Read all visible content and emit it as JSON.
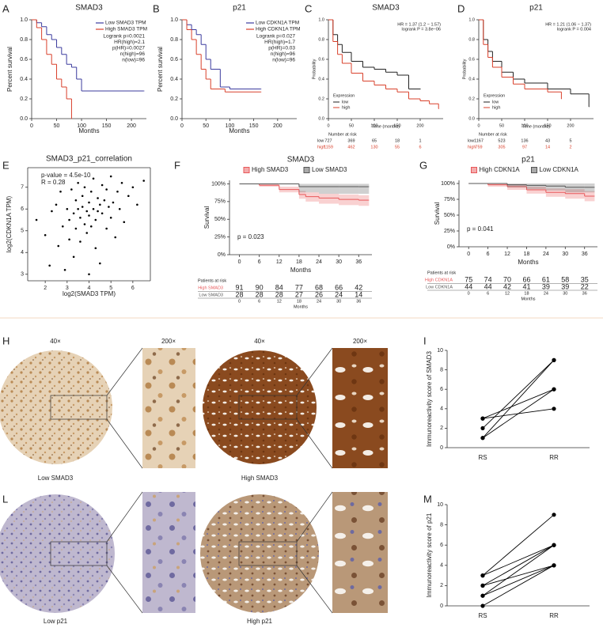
{
  "chart_data": [
    {
      "panel": "A",
      "type": "km",
      "title": "SMAD3",
      "xlabel": "Months",
      "ylabel": "Percent survival",
      "xlim": [
        0,
        230
      ],
      "xticks": [
        0,
        50,
        100,
        150,
        200
      ],
      "ylim": [
        0,
        1
      ],
      "yticks": [
        {
          "value": 0,
          "label": "0.0"
        },
        {
          "value": 0.2,
          "label": "0.2"
        },
        {
          "value": 0.4,
          "label": "0.4"
        },
        {
          "value": 0.6,
          "label": "0.6"
        },
        {
          "value": 0.8,
          "label": "0.8"
        },
        {
          "value": 1,
          "label": "1.0"
        }
      ],
      "legend": "upper right",
      "annotations": [
        "Logrank p=0.0021",
        "HR(high)=2.1",
        "p(HR)=0.0027",
        "n(high)=96",
        "n(low)=96"
      ],
      "series": [
        {
          "name": "Low SMAD3 TPM",
          "color": "#3b3b9e",
          "x": [
            0,
            10,
            20,
            30,
            40,
            50,
            60,
            70,
            80,
            90,
            100,
            225
          ],
          "values": [
            1,
            0.97,
            0.93,
            0.85,
            0.8,
            0.72,
            0.65,
            0.55,
            0.52,
            0.4,
            0.28,
            0.28
          ]
        },
        {
          "name": "High SMAD3 TPM",
          "color": "#d9402b",
          "x": [
            0,
            10,
            20,
            30,
            40,
            50,
            60,
            70,
            80
          ],
          "values": [
            1,
            0.92,
            0.8,
            0.65,
            0.55,
            0.4,
            0.32,
            0.2,
            0
          ]
        }
      ]
    },
    {
      "panel": "B",
      "type": "km",
      "title": "p21",
      "xlabel": "Months",
      "ylabel": "Percent survival",
      "xlim": [
        0,
        240
      ],
      "xticks": [
        0,
        50,
        100,
        150,
        200
      ],
      "ylim": [
        0,
        1
      ],
      "yticks": [
        {
          "value": 0,
          "label": "0.0"
        },
        {
          "value": 0.2,
          "label": "0.2"
        },
        {
          "value": 0.4,
          "label": "0.4"
        },
        {
          "value": 0.6,
          "label": "0.6"
        },
        {
          "value": 0.8,
          "label": "0.8"
        },
        {
          "value": 1,
          "label": "1.0"
        }
      ],
      "legend": "upper right",
      "annotations": [
        "Logrank p=0.027",
        "HR(high)=1.7",
        "p(HR)=0.03",
        "n(high)=96",
        "n(low)=96"
      ],
      "series": [
        {
          "name": "Low CDKN1A TPM",
          "color": "#3b3b9e",
          "x": [
            0,
            10,
            20,
            30,
            40,
            50,
            60,
            80,
            100,
            165
          ],
          "values": [
            1,
            0.95,
            0.9,
            0.85,
            0.75,
            0.6,
            0.5,
            0.32,
            0.3,
            0.3
          ]
        },
        {
          "name": "High CDKN1A TPM",
          "color": "#d9402b",
          "x": [
            0,
            10,
            20,
            30,
            40,
            50,
            60,
            90,
            165
          ],
          "values": [
            1,
            0.9,
            0.8,
            0.65,
            0.5,
            0.4,
            0.3,
            0.27,
            0.27
          ]
        }
      ]
    },
    {
      "panel": "C",
      "type": "km",
      "title": "SMAD3",
      "xlabel": "Time (months)",
      "ylabel": "Probability",
      "xlim": [
        0,
        250
      ],
      "xticks": [
        0,
        50,
        100,
        150,
        200
      ],
      "ylim": [
        0,
        1
      ],
      "yticks": [
        {
          "value": 0,
          "label": "0.0"
        },
        {
          "value": 0.2,
          "label": "0.2"
        },
        {
          "value": 0.4,
          "label": "0.4"
        },
        {
          "value": 0.6,
          "label": "0.6"
        },
        {
          "value": 0.8,
          "label": "0.8"
        },
        {
          "value": 1,
          "label": "1.0"
        }
      ],
      "legend": "lower left",
      "legend_title": "Expression",
      "annotations": [
        "HR = 1.37 (1.2 − 1.57)",
        "logrank P = 3.8e−06"
      ],
      "series": [
        {
          "name": "low",
          "color": "#222222",
          "x": [
            0,
            10,
            20,
            30,
            50,
            75,
            100,
            125,
            150,
            175,
            200
          ],
          "values": [
            1,
            0.85,
            0.75,
            0.67,
            0.58,
            0.52,
            0.5,
            0.47,
            0.44,
            0.3,
            0.3
          ]
        },
        {
          "name": "high",
          "color": "#d9402b",
          "x": [
            0,
            10,
            20,
            30,
            50,
            75,
            100,
            125,
            150,
            175,
            200,
            220,
            240
          ],
          "values": [
            1,
            0.78,
            0.65,
            0.56,
            0.46,
            0.38,
            0.34,
            0.3,
            0.27,
            0.2,
            0.18,
            0.15,
            0.1
          ]
        }
      ],
      "risk": {
        "title": "Number at risk",
        "rows": [
          {
            "name": "low",
            "values": [
              727,
              369,
              65,
              18,
              1
            ]
          },
          {
            "name": "high",
            "values": [
              1159,
              462,
              130,
              55,
              6
            ]
          }
        ]
      }
    },
    {
      "panel": "D",
      "type": "km",
      "title": "p21",
      "xlabel": "Time (months)",
      "ylabel": "Probability",
      "xlim": [
        0,
        250
      ],
      "xticks": [
        0,
        50,
        100,
        150,
        200
      ],
      "ylim": [
        0,
        1
      ],
      "yticks": [
        {
          "value": 0,
          "label": "0.0"
        },
        {
          "value": 0.2,
          "label": "0.2"
        },
        {
          "value": 0.4,
          "label": "0.4"
        },
        {
          "value": 0.6,
          "label": "0.6"
        },
        {
          "value": 0.8,
          "label": "0.8"
        },
        {
          "value": 1,
          "label": "1.0"
        }
      ],
      "legend": "lower left",
      "legend_title": "Expression",
      "annotations": [
        "HR = 1.21 (1.06 − 1.37)",
        "logrank P = 0.004"
      ],
      "series": [
        {
          "name": "low",
          "color": "#222222",
          "x": [
            0,
            10,
            20,
            30,
            50,
            75,
            100,
            150,
            200,
            240
          ],
          "values": [
            1,
            0.8,
            0.68,
            0.58,
            0.47,
            0.4,
            0.36,
            0.3,
            0.25,
            0.12
          ]
        },
        {
          "name": "high",
          "color": "#d9402b",
          "x": [
            0,
            10,
            20,
            30,
            50,
            75,
            100,
            150,
            180
          ],
          "values": [
            1,
            0.75,
            0.62,
            0.52,
            0.42,
            0.35,
            0.3,
            0.27,
            0.2
          ]
        }
      ],
      "risk": {
        "title": "Number at risk",
        "rows": [
          {
            "name": "low",
            "values": [
              1167,
              523,
              136,
              43,
              5
            ]
          },
          {
            "name": "high",
            "values": [
              759,
              305,
              97,
              14,
              2
            ]
          }
        ]
      }
    },
    {
      "panel": "E",
      "type": "scatter",
      "title": "SMAD3_p21_correlation",
      "xlabel": "log2(SMAD3 TPM)",
      "ylabel": "log2(CDKN1A TPM)",
      "xlim": [
        1.2,
        6.8
      ],
      "xticks": [
        2,
        3,
        4,
        5,
        6
      ],
      "ylim": [
        2.7,
        7.9
      ],
      "yticks": [
        3,
        4,
        5,
        6,
        7
      ],
      "color": "#000000",
      "frame": true,
      "annotations": [
        "p-value = 4.5e-10",
        "R = 0.28"
      ],
      "x": [
        1.6,
        2.0,
        2.2,
        2.3,
        2.5,
        2.6,
        2.7,
        2.8,
        2.9,
        3.0,
        3.1,
        3.1,
        3.2,
        3.3,
        3.3,
        3.4,
        3.4,
        3.5,
        3.5,
        3.6,
        3.6,
        3.7,
        3.7,
        3.8,
        3.8,
        3.9,
        3.9,
        4.0,
        4.0,
        4.0,
        4.1,
        4.1,
        4.2,
        4.2,
        4.3,
        4.3,
        4.4,
        4.4,
        4.5,
        4.5,
        4.6,
        4.6,
        4.7,
        4.8,
        4.8,
        4.9,
        5.0,
        5.0,
        5.1,
        5.2,
        5.3,
        5.4,
        5.5,
        5.6,
        5.8,
        6.0,
        6.2,
        6.5
      ],
      "values": [
        5.5,
        4.8,
        3.4,
        5.9,
        6.2,
        4.3,
        6.8,
        5.2,
        3.2,
        6.0,
        5.5,
        4.6,
        6.9,
        5.8,
        3.8,
        6.4,
        5.1,
        7.2,
        6.0,
        5.6,
        4.5,
        6.6,
        6.1,
        5.3,
        7.0,
        5.9,
        4.9,
        6.3,
        5.7,
        3.0,
        6.8,
        5.2,
        6.0,
        7.4,
        5.5,
        4.2,
        6.5,
        5.9,
        6.2,
        3.5,
        5.8,
        7.1,
        6.4,
        5.1,
        6.9,
        6.1,
        5.6,
        7.5,
        6.3,
        4.7,
        6.8,
        6.0,
        7.2,
        5.4,
        6.6,
        7.0,
        6.2,
        7.3
      ]
    },
    {
      "panel": "F",
      "type": "km",
      "title": "SMAD3",
      "xlabel": "Months",
      "ylabel": "Survival",
      "xlim": [
        -3,
        40
      ],
      "xticks": [
        0,
        6,
        12,
        18,
        24,
        30,
        36
      ],
      "ylim": [
        0,
        105
      ],
      "yticks": [
        {
          "value": 0,
          "label": "0%"
        },
        {
          "value": 25,
          "label": "25%"
        },
        {
          "value": 50,
          "label": "50%"
        },
        {
          "value": 75,
          "label": "75%"
        },
        {
          "value": 100,
          "label": "100%"
        }
      ],
      "legend": "top",
      "annotations": [
        "p = 0.023"
      ],
      "series": [
        {
          "name": "High SMAD3",
          "color": "#e8585a",
          "x": [
            0,
            6,
            12,
            18,
            20,
            24,
            30,
            36,
            39
          ],
          "values": [
            100,
            98,
            92,
            85,
            82,
            80,
            78,
            77,
            77
          ],
          "lower": [
            100,
            96,
            88,
            79,
            75,
            72,
            70,
            69,
            69
          ],
          "upper": [
            100,
            100,
            96,
            90,
            88,
            86,
            85,
            84,
            84
          ]
        },
        {
          "name": "Low SMAD3",
          "color": "#555555",
          "x": [
            0,
            6,
            12,
            18,
            24,
            30,
            36,
            39
          ],
          "values": [
            100,
            100,
            100,
            96,
            96,
            96,
            96,
            96
          ],
          "lower": [
            100,
            100,
            100,
            88,
            86,
            86,
            86,
            86
          ],
          "upper": [
            100,
            100,
            100,
            100,
            100,
            100,
            100,
            100
          ]
        }
      ],
      "risk": {
        "title": "Patients at risk",
        "rows": [
          {
            "name": "High SMAD3",
            "values": [
              91,
              90,
              84,
              77,
              68,
              66,
              42
            ]
          },
          {
            "name": "Low SMAD3",
            "values": [
              28,
              28,
              28,
              27,
              26,
              24,
              14
            ]
          }
        ]
      }
    },
    {
      "panel": "G",
      "type": "km",
      "title": "p21",
      "xlabel": "Months",
      "ylabel": "Survival",
      "xlim": [
        -3,
        40
      ],
      "xticks": [
        0,
        6,
        12,
        18,
        24,
        30,
        36
      ],
      "ylim": [
        0,
        105
      ],
      "yticks": [
        {
          "value": 0,
          "label": "0%"
        },
        {
          "value": 25,
          "label": "25%"
        },
        {
          "value": 50,
          "label": "50%"
        },
        {
          "value": 75,
          "label": "75%"
        },
        {
          "value": 100,
          "label": "100%"
        }
      ],
      "legend": "top",
      "annotations": [
        "p = 0.041"
      ],
      "series": [
        {
          "name": "High CDKN1A",
          "color": "#e8585a",
          "x": [
            0,
            6,
            12,
            18,
            24,
            30,
            36,
            39
          ],
          "values": [
            100,
            98,
            95,
            90,
            86,
            84,
            80,
            80
          ],
          "lower": [
            100,
            95,
            90,
            84,
            79,
            76,
            72,
            72
          ],
          "upper": [
            100,
            100,
            99,
            95,
            92,
            91,
            88,
            88
          ]
        },
        {
          "name": "Low CDKN1A",
          "color": "#555555",
          "x": [
            0,
            6,
            12,
            18,
            24,
            30,
            36,
            39
          ],
          "values": [
            100,
            100,
            98,
            97,
            96,
            94,
            94,
            94
          ],
          "lower": [
            100,
            100,
            94,
            91,
            89,
            86,
            86,
            86
          ],
          "upper": [
            100,
            100,
            100,
            100,
            100,
            100,
            100,
            100
          ]
        }
      ],
      "risk": {
        "title": "Patients at risk",
        "rows": [
          {
            "name": "High CDKN1A",
            "values": [
              75,
              74,
              70,
              66,
              61,
              58,
              35
            ]
          },
          {
            "name": "Low CDKN1A",
            "values": [
              44,
              44,
              42,
              41,
              39,
              39,
              22
            ]
          }
        ]
      }
    },
    {
      "panel": "I",
      "type": "paired",
      "ylabel": "Immunoreactivity score of SMAD3",
      "categories": [
        "RS",
        "RR"
      ],
      "ylim": [
        0,
        10
      ],
      "yticks": [
        0,
        2,
        4,
        6,
        8,
        10
      ],
      "color": "#000000",
      "series": [
        {
          "values": [
            3,
            6
          ]
        },
        {
          "values": [
            3,
            4
          ]
        },
        {
          "values": [
            2,
            9
          ]
        },
        {
          "values": [
            1,
            9
          ]
        },
        {
          "values": [
            1,
            6
          ]
        }
      ]
    },
    {
      "panel": "M",
      "type": "paired",
      "ylabel": "Immunoreactivity score of p21",
      "categories": [
        "RS",
        "RR"
      ],
      "ylim": [
        0,
        10
      ],
      "yticks": [
        0,
        2,
        4,
        6,
        8,
        10
      ],
      "color": "#000000",
      "series": [
        {
          "values": [
            3,
            9
          ]
        },
        {
          "values": [
            3,
            6
          ]
        },
        {
          "values": [
            2,
            6
          ]
        },
        {
          "values": [
            2,
            4
          ]
        },
        {
          "values": [
            1,
            6
          ]
        },
        {
          "values": [
            1,
            4
          ]
        },
        {
          "values": [
            0,
            4
          ]
        }
      ]
    }
  ],
  "figure": {
    "images": [
      {
        "panel": "H",
        "labels": [
          "40×",
          "200×",
          "40×",
          "200×"
        ],
        "captions": [
          "Low SMAD3",
          "High SMAD3"
        ]
      },
      {
        "panel": "L",
        "captions": [
          "Low p21",
          "High p21"
        ]
      }
    ]
  }
}
